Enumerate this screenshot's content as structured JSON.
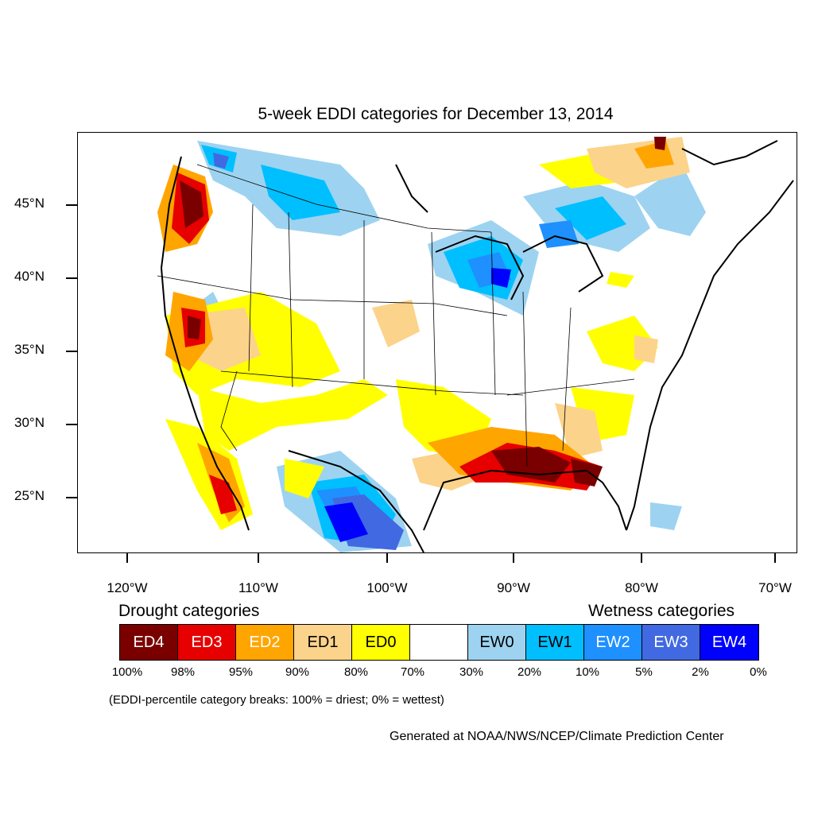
{
  "title": "5-week EDDI categories for December 13, 2014",
  "axes": {
    "lat_labels": [
      "45°N",
      "40°N",
      "35°N",
      "30°N",
      "25°N"
    ],
    "lon_labels": [
      "120°W",
      "110°W",
      "100°W",
      "90°W",
      "80°W",
      "70°W"
    ]
  },
  "legend": {
    "drought_heading": "Drought categories",
    "wetness_heading": "Wetness categories",
    "categories": [
      {
        "label": "ED4",
        "color": "#7a0000",
        "text_color": "#ffffff"
      },
      {
        "label": "ED3",
        "color": "#e60000",
        "text_color": "#ffffff"
      },
      {
        "label": "ED2",
        "color": "#ffa500",
        "text_color": "#ffffff"
      },
      {
        "label": "ED1",
        "color": "#fcd38b",
        "text_color": "#000000"
      },
      {
        "label": "ED0",
        "color": "#ffff00",
        "text_color": "#000000"
      },
      {
        "label": "",
        "color": "#ffffff",
        "text_color": "#000000"
      },
      {
        "label": "EW0",
        "color": "#9dd3f0",
        "text_color": "#000000"
      },
      {
        "label": "EW1",
        "color": "#00bfff",
        "text_color": "#000000"
      },
      {
        "label": "EW2",
        "color": "#1e90ff",
        "text_color": "#ffffff"
      },
      {
        "label": "EW3",
        "color": "#4169e1",
        "text_color": "#ffffff"
      },
      {
        "label": "EW4",
        "color": "#0000ff",
        "text_color": "#ffffff"
      }
    ],
    "percentiles": [
      "100%",
      "98%",
      "95%",
      "90%",
      "80%",
      "70%",
      "30%",
      "20%",
      "10%",
      "5%",
      "2%",
      "0%"
    ],
    "note": "(EDDI-percentile category breaks: 100% = driest; 0% = wettest)"
  },
  "credit": "Generated at NOAA/NWS/NCEP/Climate Prediction Center"
}
